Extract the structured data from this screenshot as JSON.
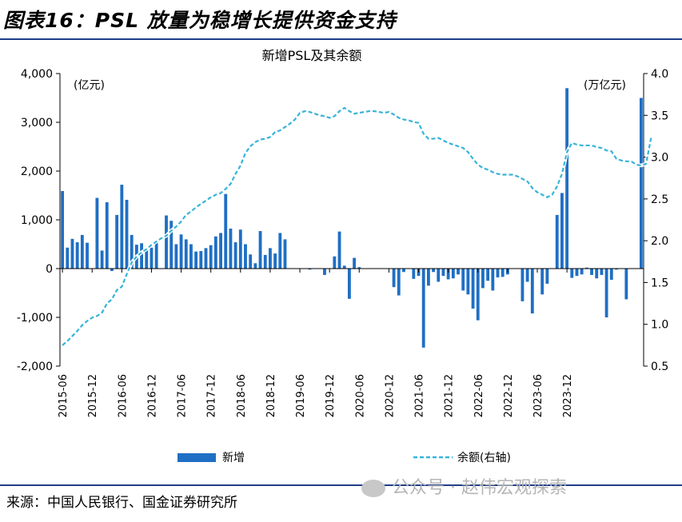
{
  "header": {
    "title": "图表16：PSL 放量为稳增长提供资金支持"
  },
  "footer": {
    "source": "来源：中国人民银行、国金证券研究所",
    "watermark": "公众号 · 赵伟宏观探索"
  },
  "chart_data": {
    "type": "bar+line",
    "title": "新增PSL及其余额",
    "left_axis": {
      "unit_label": "(亿元)",
      "ylim": [
        -2000,
        4000
      ],
      "ticks": [
        "4,000",
        "3,000",
        "2,000",
        "1,000",
        "0",
        "-1,000",
        "-2,000"
      ]
    },
    "right_axis": {
      "unit_label": "(万亿元)",
      "ylim": [
        0.5,
        4.0
      ],
      "ticks": [
        "4.0",
        "3.5",
        "3.0",
        "2.5",
        "2.0",
        "1.5",
        "1.0",
        "0.5"
      ]
    },
    "x_ticks": [
      "2015-06",
      "2015-12",
      "2016-06",
      "2016-12",
      "2017-06",
      "2017-12",
      "2018-06",
      "2018-12",
      "2019-06",
      "2019-12",
      "2020-06",
      "2020-12",
      "2021-06",
      "2021-12",
      "2022-06",
      "2022-12",
      "2023-06",
      "2023-12"
    ],
    "months_start": "2015-06",
    "series": [
      {
        "name": "新增",
        "axis": "left",
        "color": "#1f6fc4",
        "values": [
          1590,
          430,
          610,
          540,
          690,
          530,
          0,
          1450,
          370,
          1360,
          -50,
          1100,
          1720,
          1410,
          690,
          490,
          520,
          380,
          430,
          550,
          0,
          1090,
          980,
          500,
          700,
          600,
          500,
          350,
          360,
          420,
          480,
          660,
          730,
          1530,
          820,
          540,
          800,
          500,
          290,
          110,
          770,
          280,
          420,
          310,
          730,
          600,
          0,
          0,
          0,
          0,
          -20,
          0,
          0,
          -130,
          0,
          250,
          760,
          60,
          -620,
          220,
          30,
          0,
          0,
          0,
          0,
          0,
          0,
          -380,
          -550,
          -70,
          0,
          -210,
          -150,
          -1620,
          -350,
          -70,
          -270,
          -150,
          -220,
          -200,
          -120,
          -450,
          -530,
          -820,
          -1060,
          -400,
          -250,
          -450,
          -180,
          -170,
          -120,
          0,
          0,
          -670,
          -270,
          -920,
          0,
          -530,
          -310,
          0,
          1100,
          1550,
          3700,
          -190,
          -150,
          -120,
          20,
          -130,
          -200,
          -130,
          -1000,
          -230,
          -20,
          0,
          -630,
          0,
          0,
          3500
        ]
      },
      {
        "name": "余额(右轴)",
        "axis": "right",
        "color": "#36b4d8",
        "values": [
          0.75,
          0.8,
          0.86,
          0.92,
          0.99,
          1.04,
          1.08,
          1.1,
          1.14,
          1.25,
          1.3,
          1.41,
          1.45,
          1.6,
          1.74,
          1.81,
          1.86,
          1.9,
          1.95,
          1.99,
          2.03,
          2.06,
          2.12,
          2.17,
          2.23,
          2.31,
          2.35,
          2.4,
          2.44,
          2.48,
          2.52,
          2.55,
          2.57,
          2.62,
          2.68,
          2.8,
          2.9,
          3.05,
          3.13,
          3.18,
          3.21,
          3.22,
          3.24,
          3.3,
          3.32,
          3.36,
          3.4,
          3.45,
          3.53,
          3.55,
          3.54,
          3.52,
          3.5,
          3.49,
          3.47,
          3.49,
          3.55,
          3.59,
          3.55,
          3.52,
          3.53,
          3.54,
          3.55,
          3.55,
          3.54,
          3.53,
          3.54,
          3.51,
          3.47,
          3.45,
          3.44,
          3.42,
          3.41,
          3.28,
          3.22,
          3.22,
          3.23,
          3.2,
          3.17,
          3.15,
          3.13,
          3.11,
          3.06,
          2.98,
          2.91,
          2.87,
          2.85,
          2.82,
          2.8,
          2.79,
          2.79,
          2.79,
          2.77,
          2.74,
          2.71,
          2.63,
          2.58,
          2.55,
          2.52,
          2.55,
          2.65,
          2.8,
          3.06,
          3.17,
          3.15,
          3.14,
          3.14,
          3.14,
          3.12,
          3.11,
          3.08,
          3.07,
          2.98,
          2.96,
          2.95,
          2.95,
          2.91,
          2.9,
          2.92,
          3.23
        ]
      }
    ],
    "legend": {
      "placement": "bottom"
    }
  }
}
